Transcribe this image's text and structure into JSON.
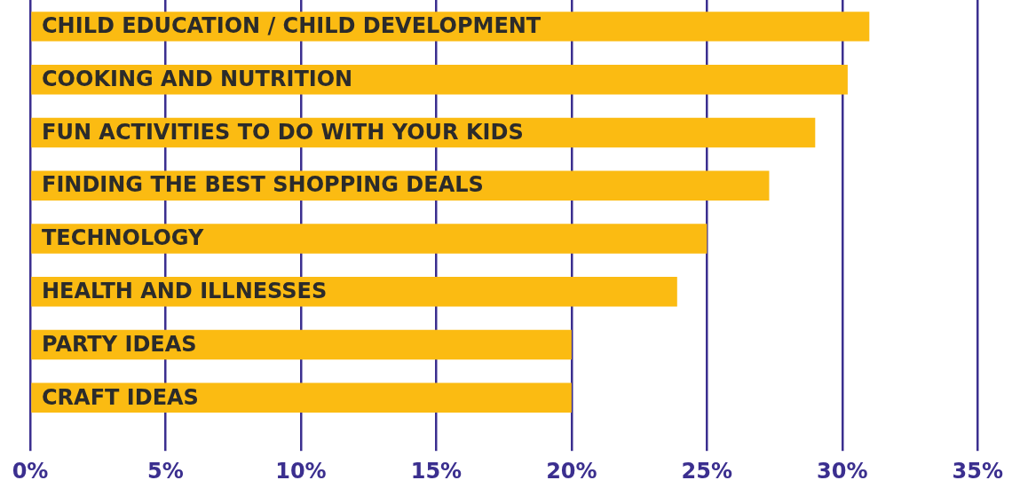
{
  "chart_data": {
    "type": "bar",
    "orientation": "horizontal",
    "categories": [
      "CHILD EDUCATION / CHILD DEVELOPMENT",
      "COOKING AND NUTRITION",
      "FUN ACTIVITIES TO DO WITH YOUR KIDS",
      "FINDING THE BEST SHOPPING DEALS",
      "TECHNOLOGY",
      "HEALTH AND ILLNESSES",
      "PARTY IDEAS",
      "CRAFT IDEAS"
    ],
    "values": [
      31,
      30.2,
      29,
      27.3,
      25,
      23.9,
      20,
      20
    ],
    "color": "#fbbb12",
    "xlim": [
      0,
      35
    ],
    "xticks": [
      {
        "value": 0,
        "label": "0%"
      },
      {
        "value": 5,
        "label": "5%"
      },
      {
        "value": 10,
        "label": "10%"
      },
      {
        "value": 15,
        "label": "15%"
      },
      {
        "value": 20,
        "label": "20%"
      },
      {
        "value": 25,
        "label": "25%"
      },
      {
        "value": 30,
        "label": "30%"
      },
      {
        "value": 35,
        "label": "35%"
      }
    ],
    "grid": "x",
    "legend": false
  }
}
